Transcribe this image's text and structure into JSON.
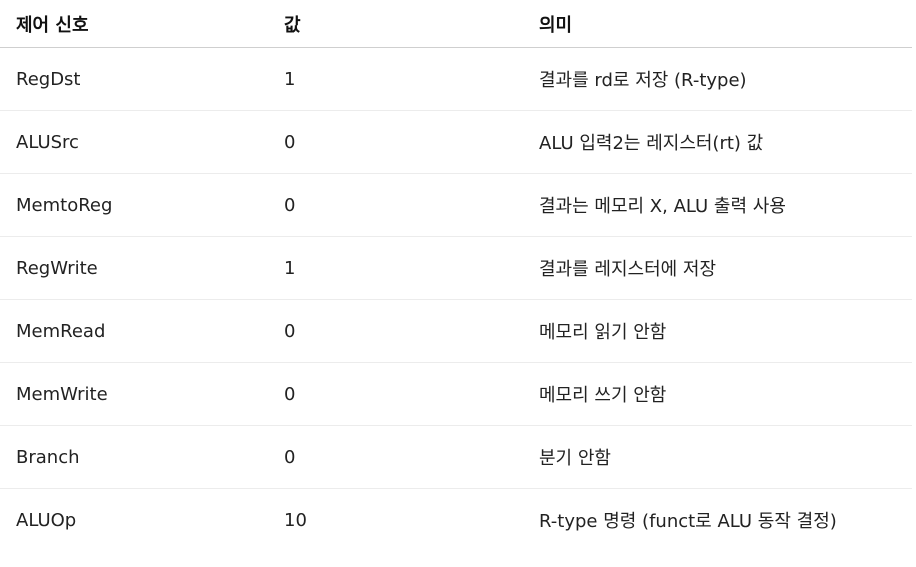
{
  "table": {
    "headers": [
      "제어 신호",
      "값",
      "의미"
    ],
    "rows": [
      {
        "signal": "RegDst",
        "value": "1",
        "meaning": "결과를 rd로 저장 (R-type)"
      },
      {
        "signal": "ALUSrc",
        "value": "0",
        "meaning": "ALU 입력2는 레지스터(rt) 값"
      },
      {
        "signal": "MemtoReg",
        "value": "0",
        "meaning": "결과는 메모리 X, ALU 출력 사용"
      },
      {
        "signal": "RegWrite",
        "value": "1",
        "meaning": "결과를 레지스터에 저장"
      },
      {
        "signal": "MemRead",
        "value": "0",
        "meaning": "메모리 읽기 안함"
      },
      {
        "signal": "MemWrite",
        "value": "0",
        "meaning": "메모리 쓰기 안함"
      },
      {
        "signal": "Branch",
        "value": "0",
        "meaning": "분기 안함"
      },
      {
        "signal": "ALUOp",
        "value": "10",
        "meaning": "R-type 명령 (funct로 ALU 동작 결정)"
      }
    ]
  }
}
